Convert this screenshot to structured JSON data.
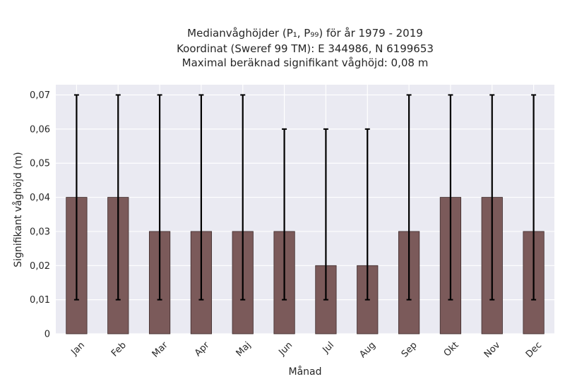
{
  "chart_data": {
    "type": "bar",
    "title_lines": [
      "Medianvåghöjder (P₁, P₉₉) för år 1979 - 2019",
      "Koordinat (Sweref 99 TM): E 344986, N 6199653",
      "Maximal beräknad signifikant våghöjd: 0,08 m"
    ],
    "xlabel": "Månad",
    "ylabel": "Signifikant våghöjd (m)",
    "categories": [
      "Jan",
      "Feb",
      "Mar",
      "Apr",
      "Maj",
      "Jun",
      "Jul",
      "Aug",
      "Sep",
      "Okt",
      "Nov",
      "Dec"
    ],
    "values": [
      0.04,
      0.04,
      0.03,
      0.03,
      0.03,
      0.03,
      0.02,
      0.02,
      0.03,
      0.04,
      0.04,
      0.03
    ],
    "error_low": [
      0.01,
      0.01,
      0.01,
      0.01,
      0.01,
      0.01,
      0.01,
      0.01,
      0.01,
      0.01,
      0.01,
      0.01
    ],
    "error_high": [
      0.07,
      0.07,
      0.07,
      0.07,
      0.07,
      0.06,
      0.06,
      0.06,
      0.07,
      0.07,
      0.07,
      0.07
    ],
    "ylim": [
      0,
      0.073
    ],
    "yticks": [
      0,
      0.01,
      0.02,
      0.03,
      0.04,
      0.05,
      0.06,
      0.07
    ],
    "ytick_labels": [
      "0",
      "0,01",
      "0,02",
      "0,03",
      "0,04",
      "0,05",
      "0,06",
      "0,07"
    ],
    "grid": true,
    "colors": {
      "bar": "#7b5a5a",
      "bar_edge": "#3d2b2b",
      "plot_background": "#eaeaf2",
      "grid": "#ffffff",
      "error_bar": "#000000"
    }
  }
}
